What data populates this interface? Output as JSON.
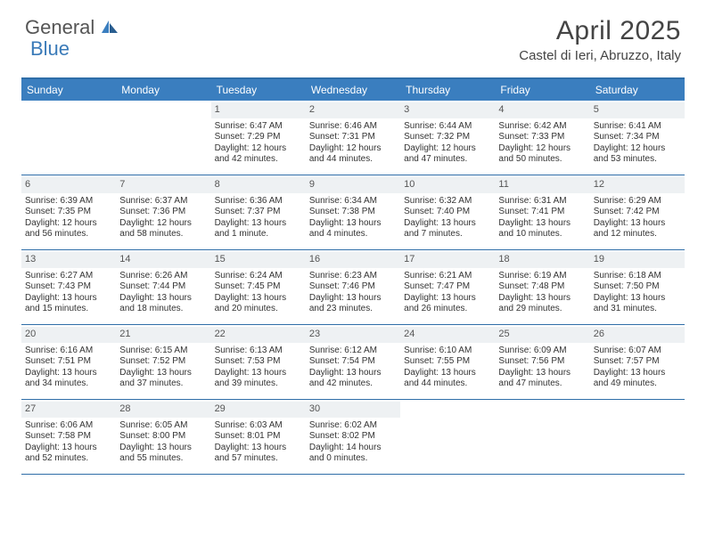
{
  "brand": {
    "part1": "General",
    "part2": "Blue"
  },
  "title": "April 2025",
  "location": "Castel di Ieri, Abruzzo, Italy",
  "colors": {
    "header_bg": "#3a7ebf",
    "header_border": "#2f6ea8",
    "daynum_bg": "#eef1f3",
    "text": "#333333",
    "brand_gray": "#555555",
    "brand_blue": "#3a7ab8"
  },
  "weekdays": [
    "Sunday",
    "Monday",
    "Tuesday",
    "Wednesday",
    "Thursday",
    "Friday",
    "Saturday"
  ],
  "leadingEmpty": 2,
  "days": [
    {
      "n": "1",
      "sr": "6:47 AM",
      "ss": "7:29 PM",
      "dl": "12 hours and 42 minutes."
    },
    {
      "n": "2",
      "sr": "6:46 AM",
      "ss": "7:31 PM",
      "dl": "12 hours and 44 minutes."
    },
    {
      "n": "3",
      "sr": "6:44 AM",
      "ss": "7:32 PM",
      "dl": "12 hours and 47 minutes."
    },
    {
      "n": "4",
      "sr": "6:42 AM",
      "ss": "7:33 PM",
      "dl": "12 hours and 50 minutes."
    },
    {
      "n": "5",
      "sr": "6:41 AM",
      "ss": "7:34 PM",
      "dl": "12 hours and 53 minutes."
    },
    {
      "n": "6",
      "sr": "6:39 AM",
      "ss": "7:35 PM",
      "dl": "12 hours and 56 minutes."
    },
    {
      "n": "7",
      "sr": "6:37 AM",
      "ss": "7:36 PM",
      "dl": "12 hours and 58 minutes."
    },
    {
      "n": "8",
      "sr": "6:36 AM",
      "ss": "7:37 PM",
      "dl": "13 hours and 1 minute."
    },
    {
      "n": "9",
      "sr": "6:34 AM",
      "ss": "7:38 PM",
      "dl": "13 hours and 4 minutes."
    },
    {
      "n": "10",
      "sr": "6:32 AM",
      "ss": "7:40 PM",
      "dl": "13 hours and 7 minutes."
    },
    {
      "n": "11",
      "sr": "6:31 AM",
      "ss": "7:41 PM",
      "dl": "13 hours and 10 minutes."
    },
    {
      "n": "12",
      "sr": "6:29 AM",
      "ss": "7:42 PM",
      "dl": "13 hours and 12 minutes."
    },
    {
      "n": "13",
      "sr": "6:27 AM",
      "ss": "7:43 PM",
      "dl": "13 hours and 15 minutes."
    },
    {
      "n": "14",
      "sr": "6:26 AM",
      "ss": "7:44 PM",
      "dl": "13 hours and 18 minutes."
    },
    {
      "n": "15",
      "sr": "6:24 AM",
      "ss": "7:45 PM",
      "dl": "13 hours and 20 minutes."
    },
    {
      "n": "16",
      "sr": "6:23 AM",
      "ss": "7:46 PM",
      "dl": "13 hours and 23 minutes."
    },
    {
      "n": "17",
      "sr": "6:21 AM",
      "ss": "7:47 PM",
      "dl": "13 hours and 26 minutes."
    },
    {
      "n": "18",
      "sr": "6:19 AM",
      "ss": "7:48 PM",
      "dl": "13 hours and 29 minutes."
    },
    {
      "n": "19",
      "sr": "6:18 AM",
      "ss": "7:50 PM",
      "dl": "13 hours and 31 minutes."
    },
    {
      "n": "20",
      "sr": "6:16 AM",
      "ss": "7:51 PM",
      "dl": "13 hours and 34 minutes."
    },
    {
      "n": "21",
      "sr": "6:15 AM",
      "ss": "7:52 PM",
      "dl": "13 hours and 37 minutes."
    },
    {
      "n": "22",
      "sr": "6:13 AM",
      "ss": "7:53 PM",
      "dl": "13 hours and 39 minutes."
    },
    {
      "n": "23",
      "sr": "6:12 AM",
      "ss": "7:54 PM",
      "dl": "13 hours and 42 minutes."
    },
    {
      "n": "24",
      "sr": "6:10 AM",
      "ss": "7:55 PM",
      "dl": "13 hours and 44 minutes."
    },
    {
      "n": "25",
      "sr": "6:09 AM",
      "ss": "7:56 PM",
      "dl": "13 hours and 47 minutes."
    },
    {
      "n": "26",
      "sr": "6:07 AM",
      "ss": "7:57 PM",
      "dl": "13 hours and 49 minutes."
    },
    {
      "n": "27",
      "sr": "6:06 AM",
      "ss": "7:58 PM",
      "dl": "13 hours and 52 minutes."
    },
    {
      "n": "28",
      "sr": "6:05 AM",
      "ss": "8:00 PM",
      "dl": "13 hours and 55 minutes."
    },
    {
      "n": "29",
      "sr": "6:03 AM",
      "ss": "8:01 PM",
      "dl": "13 hours and 57 minutes."
    },
    {
      "n": "30",
      "sr": "6:02 AM",
      "ss": "8:02 PM",
      "dl": "14 hours and 0 minutes."
    }
  ],
  "labels": {
    "sunrise": "Sunrise:",
    "sunset": "Sunset:",
    "daylight": "Daylight:"
  }
}
